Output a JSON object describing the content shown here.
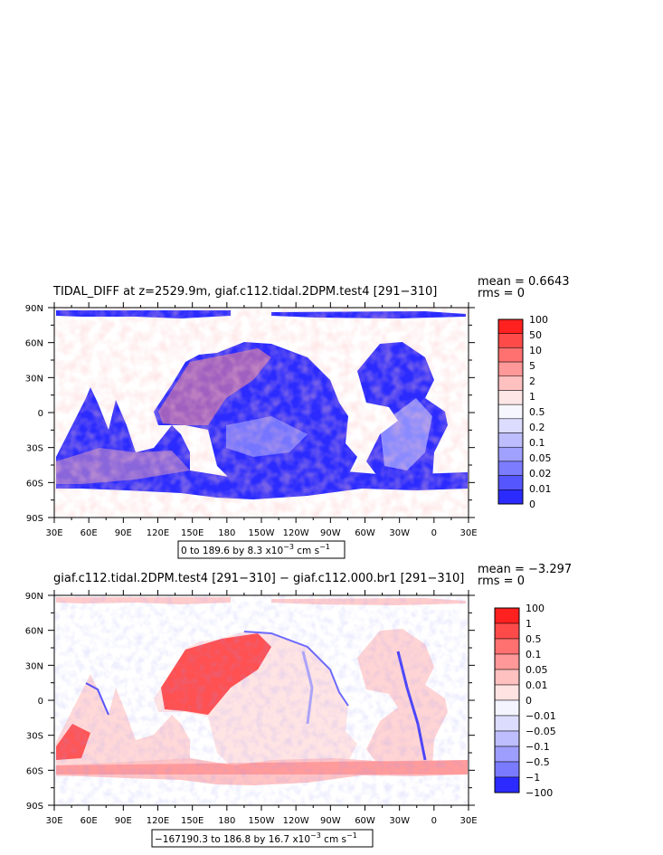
{
  "chart_data": [
    {
      "type": "heatmap",
      "title": "TIDAL_DIFF at z=2529.9m, giaf.c112.tidal.2DPM.test4 [291−310]",
      "stats": {
        "mean": "mean = 0.6643",
        "rms": "rms = 0"
      },
      "x_ticks": [
        "30E",
        "60E",
        "90E",
        "120E",
        "150E",
        "180",
        "150W",
        "120W",
        "90W",
        "60W",
        "30W",
        "0",
        "30E"
      ],
      "y_ticks": [
        "90N",
        "60N",
        "30N",
        "0",
        "30S",
        "60S",
        "90S"
      ],
      "colorbar": {
        "levels": [
          "100",
          "50",
          "10",
          "5",
          "2",
          "1",
          "0.5",
          "0.2",
          "0.1",
          "0.05",
          "0.02",
          "0.01",
          "0"
        ],
        "colors": [
          "#ff2020",
          "#ff4a4a",
          "#ff7070",
          "#ff9898",
          "#ffc0c0",
          "#ffe6e6",
          "#f6f6ff",
          "#dcdcff",
          "#bebeff",
          "#a0a0ff",
          "#7c7cff",
          "#5656ff",
          "#2b2bff"
        ]
      },
      "range_parts": {
        "pre": "0 to 189.6 by 8.3 x10",
        "exp": "−3",
        "unit": " cm s",
        "unit_exp": "−1"
      }
    },
    {
      "type": "heatmap",
      "title": "giaf.c112.tidal.2DPM.test4 [291−310] − giaf.c112.000.br1 [291−310]",
      "stats": {
        "mean": "mean = −3.297",
        "rms": "rms = 0"
      },
      "x_ticks": [
        "30E",
        "60E",
        "90E",
        "120E",
        "150E",
        "180",
        "150W",
        "120W",
        "90W",
        "60W",
        "30W",
        "0",
        "30E"
      ],
      "y_ticks": [
        "90N",
        "60N",
        "30N",
        "0",
        "30S",
        "60S",
        "90S"
      ],
      "colorbar": {
        "levels": [
          "100",
          "1",
          "0.5",
          "0.1",
          "0.05",
          "0.01",
          "0",
          "−0.01",
          "−0.05",
          "−0.1",
          "−0.5",
          "−1",
          "−100"
        ],
        "colors": [
          "#ff2020",
          "#ff4a4a",
          "#ff7070",
          "#ff9898",
          "#ffc0c0",
          "#ffe2e2",
          "#f4f4ff",
          "#dcdcff",
          "#bebeff",
          "#9e9eff",
          "#7a7aff",
          "#2b2bff"
        ]
      },
      "range_parts": {
        "pre": "−167190.3 to 186.8 by 16.7 x10",
        "exp": "−3",
        "unit": " cm s",
        "unit_exp": "−1"
      }
    }
  ]
}
